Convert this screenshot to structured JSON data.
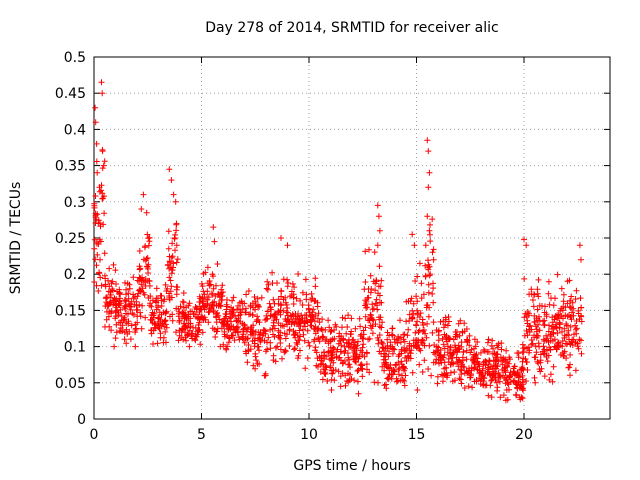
{
  "chart_data": {
    "type": "scatter",
    "title": "Day 278 of 2014, SRMTID for receiver alic",
    "xlabel": "GPS time / hours",
    "ylabel": "SRMTID / TECUs",
    "xlim": [
      0,
      24
    ],
    "ylim": [
      0,
      0.5
    ],
    "xticks": [
      0,
      5,
      10,
      15,
      20
    ],
    "yticks": [
      0,
      0.05,
      0.1,
      0.15,
      0.2,
      0.25,
      0.3,
      0.35,
      0.4,
      0.45,
      0.5
    ],
    "grid": true,
    "marker": "+",
    "color": "#ff0000",
    "x_extent": [
      0,
      22.7
    ],
    "segments": [
      {
        "x_start": 0.0,
        "x_end": 0.5,
        "y_low": 0.14,
        "y_high": 0.47
      },
      {
        "x_start": 0.5,
        "x_end": 1.0,
        "y_low": 0.1,
        "y_high": 0.26
      },
      {
        "x_start": 1.0,
        "x_end": 2.0,
        "y_low": 0.1,
        "y_high": 0.24
      },
      {
        "x_start": 2.0,
        "x_end": 2.3,
        "y_low": 0.12,
        "y_high": 0.29
      },
      {
        "x_start": 2.3,
        "x_end": 2.6,
        "y_low": 0.14,
        "y_high": 0.32
      },
      {
        "x_start": 2.6,
        "x_end": 3.4,
        "y_low": 0.09,
        "y_high": 0.23
      },
      {
        "x_start": 3.4,
        "x_end": 3.9,
        "y_low": 0.12,
        "y_high": 0.35
      },
      {
        "x_start": 3.9,
        "x_end": 5.0,
        "y_low": 0.1,
        "y_high": 0.2
      },
      {
        "x_start": 5.0,
        "x_end": 6.0,
        "y_low": 0.1,
        "y_high": 0.26
      },
      {
        "x_start": 6.0,
        "x_end": 7.0,
        "y_low": 0.09,
        "y_high": 0.2
      },
      {
        "x_start": 7.0,
        "x_end": 8.0,
        "y_low": 0.06,
        "y_high": 0.22
      },
      {
        "x_start": 8.0,
        "x_end": 9.5,
        "y_low": 0.07,
        "y_high": 0.25
      },
      {
        "x_start": 9.5,
        "x_end": 10.5,
        "y_low": 0.07,
        "y_high": 0.23
      },
      {
        "x_start": 10.5,
        "x_end": 12.5,
        "y_low": 0.04,
        "y_high": 0.18
      },
      {
        "x_start": 12.5,
        "x_end": 13.4,
        "y_low": 0.05,
        "y_high": 0.3
      },
      {
        "x_start": 13.4,
        "x_end": 14.5,
        "y_low": 0.03,
        "y_high": 0.18
      },
      {
        "x_start": 14.5,
        "x_end": 15.4,
        "y_low": 0.04,
        "y_high": 0.26
      },
      {
        "x_start": 15.4,
        "x_end": 15.8,
        "y_low": 0.06,
        "y_high": 0.39
      },
      {
        "x_start": 15.8,
        "x_end": 17.5,
        "y_low": 0.04,
        "y_high": 0.18
      },
      {
        "x_start": 17.5,
        "x_end": 19.0,
        "y_low": 0.03,
        "y_high": 0.15
      },
      {
        "x_start": 19.0,
        "x_end": 20.0,
        "y_low": 0.025,
        "y_high": 0.13
      },
      {
        "x_start": 20.0,
        "x_end": 20.5,
        "y_low": 0.05,
        "y_high": 0.25
      },
      {
        "x_start": 20.5,
        "x_end": 21.5,
        "y_low": 0.05,
        "y_high": 0.24
      },
      {
        "x_start": 21.5,
        "x_end": 22.7,
        "y_low": 0.06,
        "y_high": 0.24
      }
    ],
    "points": [
      [
        0.05,
        0.43
      ],
      [
        0.08,
        0.41
      ],
      [
        0.12,
        0.38
      ],
      [
        0.15,
        0.34
      ],
      [
        0.2,
        0.27
      ],
      [
        0.35,
        0.465
      ],
      [
        0.38,
        0.45
      ],
      [
        0.4,
        0.37
      ],
      [
        0.45,
        0.35
      ],
      [
        0.42,
        0.305
      ],
      [
        2.2,
        0.29
      ],
      [
        2.3,
        0.31
      ],
      [
        2.45,
        0.285
      ],
      [
        3.5,
        0.345
      ],
      [
        3.6,
        0.33
      ],
      [
        3.7,
        0.31
      ],
      [
        3.8,
        0.3
      ],
      [
        3.75,
        0.25
      ],
      [
        3.85,
        0.24
      ],
      [
        5.55,
        0.265
      ],
      [
        5.6,
        0.245
      ],
      [
        8.7,
        0.25
      ],
      [
        9.0,
        0.24
      ],
      [
        13.2,
        0.295
      ],
      [
        13.25,
        0.28
      ],
      [
        13.3,
        0.26
      ],
      [
        13.2,
        0.24
      ],
      [
        15.5,
        0.385
      ],
      [
        15.55,
        0.37
      ],
      [
        15.6,
        0.34
      ],
      [
        15.55,
        0.32
      ],
      [
        15.5,
        0.28
      ],
      [
        15.6,
        0.26
      ],
      [
        14.8,
        0.255
      ],
      [
        14.9,
        0.24
      ],
      [
        20.0,
        0.248
      ],
      [
        20.1,
        0.24
      ],
      [
        22.6,
        0.24
      ],
      [
        22.65,
        0.22
      ],
      [
        18.9,
        0.03
      ],
      [
        19.2,
        0.04
      ],
      [
        19.8,
        0.03
      ],
      [
        12.3,
        0.035
      ]
    ]
  }
}
